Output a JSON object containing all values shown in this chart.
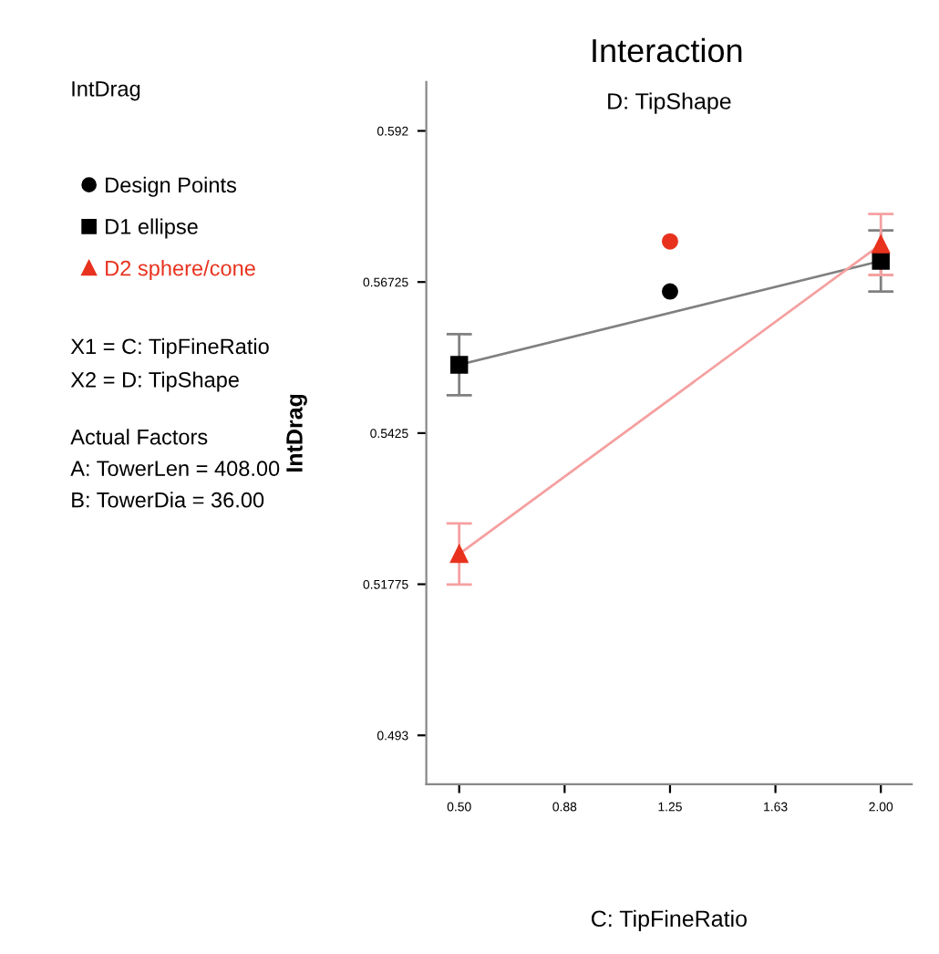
{
  "chart_data": {
    "type": "line",
    "title": "Interaction",
    "subtitle": "D: TipShape",
    "xlabel": "C: TipFineRatio",
    "ylabel": "IntDrag",
    "annotations": [
      "IntDrag",
      "X1 = C: TipFineRatio",
      "X2 = D: TipShape",
      "Actual Factors",
      "A: TowerLen = 408.00",
      "B: TowerDia = 36.00"
    ],
    "series": [
      {
        "name": "Design Points",
        "type": "scatter",
        "marker": "circle",
        "color": "#000000",
        "colors": [
          "#e8321e",
          "#000000"
        ],
        "x": [
          1.25,
          1.25
        ],
        "values": [
          0.5739,
          0.5657
        ]
      },
      {
        "name": "D1 ellipse",
        "marker": "square",
        "color": "#000000",
        "x": [
          0.5,
          2.0
        ],
        "values": [
          0.5537,
          0.5707
        ],
        "errors": [
          0.005,
          0.005
        ]
      },
      {
        "name": "D2 sphere/cone",
        "marker": "triangle",
        "color": "#e8321e",
        "x": [
          0.5,
          2.0
        ],
        "values": [
          0.5227,
          0.5734
        ],
        "errors": [
          0.005,
          0.005
        ]
      }
    ],
    "xlim": [
      0.383,
      2.11
    ],
    "ylim": [
      0.485,
      0.6
    ],
    "xticks": [
      {
        "value": 0.5,
        "label": "0.50"
      },
      {
        "value": 0.875,
        "label": "0.88"
      },
      {
        "value": 1.25,
        "label": "1.25"
      },
      {
        "value": 1.625,
        "label": "1.63"
      },
      {
        "value": 2.0,
        "label": "2.00"
      }
    ],
    "yticks": [
      0.493,
      0.51775,
      0.5425,
      0.56725,
      0.592
    ],
    "legend": "left",
    "grid": false
  }
}
